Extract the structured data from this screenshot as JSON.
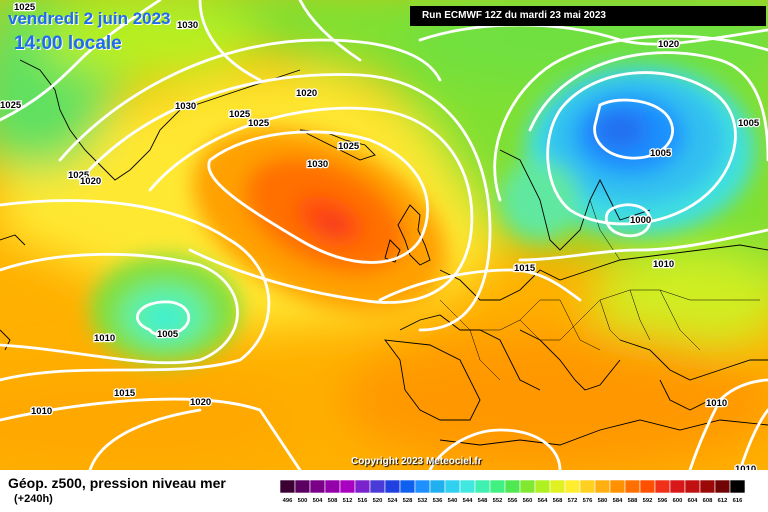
{
  "header": {
    "date": "vendredi 2 juin 2023",
    "time": "14:00 locale",
    "run": "Run ECMWF 12Z du mardi 23 mai 2023"
  },
  "footer": {
    "copyright": "Copyright 2023 Meteociel.fr",
    "title": "Géop. z500, pression niveau mer",
    "subtitle": "(+240h)"
  },
  "legend": {
    "ticks": [
      "496",
      "500",
      "504",
      "508",
      "512",
      "516",
      "520",
      "524",
      "528",
      "532",
      "536",
      "540",
      "544",
      "548",
      "552",
      "556",
      "560",
      "564",
      "568",
      "572",
      "576",
      "580",
      "584",
      "588",
      "592",
      "596",
      "600",
      "604",
      "608",
      "612",
      "616"
    ],
    "colors": [
      "#3a0032",
      "#5a0060",
      "#7a0088",
      "#9400aa",
      "#aa00c0",
      "#7a22cc",
      "#4a3ad8",
      "#2040e0",
      "#1060f0",
      "#1e90ff",
      "#20b0f0",
      "#30d0f0",
      "#40e8e0",
      "#40f0b0",
      "#40f080",
      "#50e850",
      "#80e830",
      "#b0f020",
      "#e0f020",
      "#ffee30",
      "#ffd020",
      "#ffb010",
      "#ff9000",
      "#ff7000",
      "#ff5000",
      "#f03018",
      "#d81818",
      "#c01010",
      "#9a0808",
      "#700404",
      "#000000"
    ]
  },
  "isobars": [
    {
      "value": "1025"
    },
    {
      "value": "1030"
    },
    {
      "value": "1020"
    },
    {
      "value": "1030"
    },
    {
      "value": "1025"
    },
    {
      "value": "1020"
    },
    {
      "value": "1025"
    },
    {
      "value": "1030"
    },
    {
      "value": "1025"
    },
    {
      "value": "1025"
    },
    {
      "value": "1025"
    },
    {
      "value": "1020"
    },
    {
      "value": "1005"
    },
    {
      "value": "1005"
    },
    {
      "value": "1000"
    },
    {
      "value": "1015"
    },
    {
      "value": "1010"
    },
    {
      "value": "1010"
    },
    {
      "value": "1005"
    },
    {
      "value": "1015"
    },
    {
      "value": "1010"
    },
    {
      "value": "1020"
    },
    {
      "value": "1010"
    },
    {
      "value": "1010"
    }
  ]
}
